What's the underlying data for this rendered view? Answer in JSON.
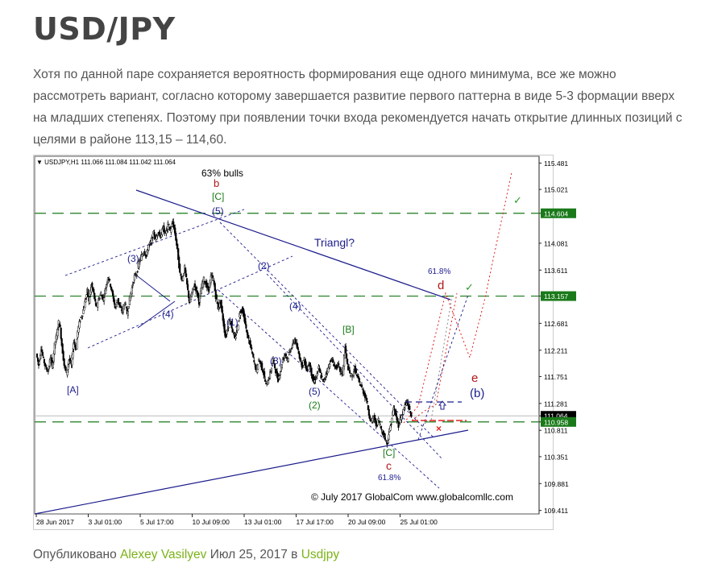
{
  "post": {
    "title": "USD/JPY",
    "body": "Хотя по данной паре сохраняется вероятность формирования еще одного минимума, все же можно рассмотреть вариант, согласно которому завершается развитие первого паттерна в виде 5-3 формации вверх на младших степенях. Поэтому при появлении точки входа рекомендуется начать открытие длинных позиций с целями в районе 113,15 – 114,60."
  },
  "meta": {
    "published": "Опубликовано",
    "author": "Alexey Vasilyev",
    "date": "Июл 25, 2017",
    "in": "в",
    "category": "Usdjpy"
  },
  "colors": {
    "accent_link": "#7ab317",
    "level_green": "#1a7a1a",
    "wave_blue": "#1c1c8c",
    "wave_red": "#b01818",
    "projection_red": "#e02020"
  },
  "chart_data": {
    "type": "candlestick",
    "symbol_header": "USDJPY,H1  111.066 111.084 111.042 111.064",
    "copyright": "© July 2017 GlobalCom www.globalcomllc.com",
    "y_ticks": [
      "115.481",
      "115.021",
      "114.604",
      "114.081",
      "113.611",
      "113.157",
      "112.681",
      "112.211",
      "111.751",
      "111.281",
      "111.064",
      "110.958",
      "110.811",
      "110.351",
      "109.881",
      "109.411"
    ],
    "x_ticks": [
      "28 Jun 2017",
      "3 Jul 01:00",
      "5 Jul 17:00",
      "10 Jul 09:00",
      "13 Jul 01:00",
      "17 Jul 17:00",
      "20 Jul 09:00",
      "25 Jul 01:00"
    ],
    "highlighted_levels": [
      {
        "label": "114.604",
        "value": 114.604
      },
      {
        "label": "113.157",
        "value": 113.157
      },
      {
        "label": "110.958",
        "value": 110.958
      }
    ],
    "current_price": {
      "label": "111.064",
      "value": 111.064
    },
    "ylim": [
      109.35,
      115.6
    ],
    "price_path": [
      [
        0,
        112.15
      ],
      [
        3,
        111.95
      ],
      [
        6,
        112.25
      ],
      [
        9,
        112.05
      ],
      [
        12,
        111.9
      ],
      [
        15,
        111.85
      ],
      [
        18,
        112.1
      ],
      [
        20,
        111.9
      ],
      [
        23,
        112.3
      ],
      [
        26,
        112.5
      ],
      [
        28,
        112.7
      ],
      [
        30,
        112.6
      ],
      [
        32,
        112.3
      ],
      [
        35,
        111.95
      ],
      [
        38,
        111.8
      ],
      [
        41,
        112.05
      ],
      [
        44,
        111.95
      ],
      [
        47,
        112.35
      ],
      [
        50,
        112.25
      ],
      [
        52,
        112.55
      ],
      [
        55,
        112.75
      ],
      [
        58,
        112.85
      ],
      [
        61,
        113.05
      ],
      [
        64,
        113.25
      ],
      [
        66,
        113.05
      ],
      [
        69,
        113.35
      ],
      [
        72,
        113.2
      ],
      [
        75,
        112.95
      ],
      [
        78,
        113.1
      ],
      [
        81,
        113.2
      ],
      [
        84,
        113.1
      ],
      [
        87,
        113.3
      ],
      [
        90,
        113.5
      ],
      [
        93,
        113.35
      ],
      [
        96,
        113.15
      ],
      [
        99,
        112.95
      ],
      [
        102,
        113.1
      ],
      [
        105,
        112.95
      ],
      [
        108,
        112.9
      ],
      [
        111,
        113.05
      ],
      [
        114,
        112.85
      ],
      [
        117,
        113.1
      ],
      [
        120,
        113.3
      ],
      [
        123,
        113.5
      ],
      [
        126,
        113.55
      ],
      [
        129,
        113.75
      ],
      [
        132,
        113.85
      ],
      [
        135,
        113.95
      ],
      [
        138,
        113.85
      ],
      [
        141,
        114.05
      ],
      [
        144,
        114.1
      ],
      [
        147,
        114.25
      ],
      [
        150,
        114.15
      ],
      [
        153,
        114.3
      ],
      [
        156,
        114.2
      ],
      [
        159,
        114.35
      ],
      [
        162,
        114.25
      ],
      [
        165,
        114.4
      ],
      [
        168,
        114.3
      ],
      [
        171,
        114.45
      ],
      [
        174,
        114.25
      ],
      [
        177,
        113.95
      ],
      [
        180,
        113.55
      ],
      [
        183,
        113.45
      ],
      [
        186,
        113.65
      ],
      [
        189,
        113.35
      ],
      [
        192,
        113.05
      ],
      [
        195,
        113.2
      ],
      [
        198,
        113.35
      ],
      [
        201,
        113.25
      ],
      [
        204,
        113.05
      ],
      [
        207,
        113.3
      ],
      [
        210,
        113.45
      ],
      [
        213,
        113.35
      ],
      [
        216,
        113.25
      ],
      [
        219,
        113.5
      ],
      [
        222,
        113.45
      ],
      [
        225,
        113.15
      ],
      [
        228,
        112.95
      ],
      [
        231,
        113.05
      ],
      [
        234,
        112.75
      ],
      [
        237,
        112.45
      ],
      [
        240,
        112.6
      ],
      [
        243,
        112.75
      ],
      [
        246,
        112.55
      ],
      [
        249,
        112.4
      ],
      [
        252,
        112.6
      ],
      [
        255,
        112.85
      ],
      [
        258,
        112.95
      ],
      [
        261,
        112.75
      ],
      [
        264,
        112.5
      ],
      [
        267,
        112.35
      ],
      [
        270,
        112.2
      ],
      [
        273,
        112.0
      ],
      [
        276,
        111.85
      ],
      [
        279,
        112.05
      ],
      [
        282,
        111.95
      ],
      [
        285,
        111.8
      ],
      [
        288,
        111.6
      ],
      [
        291,
        111.7
      ],
      [
        294,
        111.85
      ],
      [
        297,
        112.05
      ],
      [
        300,
        111.85
      ],
      [
        303,
        111.7
      ],
      [
        306,
        111.85
      ],
      [
        309,
        112.05
      ],
      [
        312,
        112.15
      ],
      [
        315,
        112.05
      ],
      [
        318,
        112.2
      ],
      [
        321,
        112.3
      ],
      [
        324,
        112.4
      ],
      [
        327,
        112.25
      ],
      [
        330,
        112.1
      ],
      [
        333,
        111.95
      ],
      [
        336,
        112.05
      ],
      [
        339,
        111.85
      ],
      [
        342,
        112.0
      ],
      [
        345,
        111.8
      ],
      [
        348,
        111.65
      ],
      [
        351,
        111.75
      ],
      [
        354,
        111.9
      ],
      [
        357,
        111.75
      ],
      [
        360,
        111.65
      ],
      [
        363,
        111.8
      ],
      [
        366,
        111.9
      ],
      [
        369,
        112.05
      ],
      [
        372,
        112.0
      ],
      [
        375,
        111.9
      ],
      [
        378,
        111.95
      ],
      [
        381,
        111.85
      ],
      [
        384,
        111.8
      ],
      [
        387,
        112.25
      ],
      [
        390,
        111.95
      ],
      [
        393,
        111.8
      ],
      [
        396,
        111.75
      ],
      [
        399,
        111.9
      ],
      [
        402,
        111.75
      ],
      [
        405,
        111.65
      ],
      [
        408,
        111.55
      ],
      [
        411,
        111.45
      ],
      [
        414,
        111.35
      ],
      [
        417,
        111.1
      ],
      [
        420,
        110.95
      ],
      [
        423,
        111.05
      ],
      [
        426,
        110.9
      ],
      [
        429,
        111.0
      ],
      [
        432,
        110.85
      ],
      [
        435,
        110.75
      ],
      [
        438,
        110.65
      ],
      [
        440,
        110.58
      ],
      [
        442,
        110.75
      ],
      [
        445,
        110.95
      ],
      [
        448,
        111.2
      ],
      [
        451,
        111.05
      ],
      [
        454,
        110.9
      ],
      [
        456,
        111.0
      ],
      [
        459,
        111.1
      ],
      [
        462,
        111.25
      ],
      [
        465,
        111.3
      ],
      [
        468,
        111.15
      ],
      [
        470,
        111.06
      ]
    ],
    "annotations": [
      "63% bulls",
      "b",
      "[C]",
      "(5)",
      "Triangl?",
      "(3)",
      "(4)",
      "(2)",
      "(1)",
      "(3)",
      "(4)",
      "[B]",
      "(5)",
      "[A]",
      "(2)",
      "61.8%",
      "d",
      "e",
      "(b)",
      "[C]",
      "c",
      "61.8%"
    ]
  }
}
